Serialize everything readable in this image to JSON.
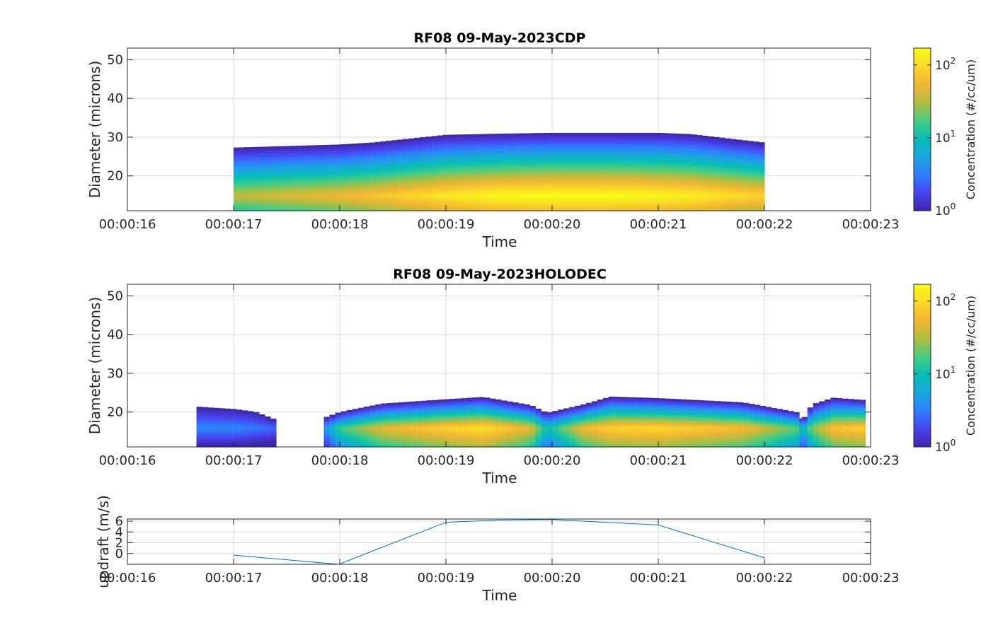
{
  "colors": {
    "line": "#0072BD",
    "colormap": [
      "#3E26A8",
      "#4743F0",
      "#2F7EFC",
      "#1AA6DD",
      "#07BFB3",
      "#4ACB81",
      "#B1BD41",
      "#F2B634",
      "#F9D929",
      "#F9FB15"
    ]
  },
  "chart_data": [
    {
      "type": "heatmap",
      "title": "RF08 09-May-2023CDP",
      "xlabel": "Time",
      "ylabel": "Diameter (microns)",
      "xticks": [
        "00:00:16",
        "00:00:17",
        "00:00:18",
        "00:00:19",
        "00:00:20",
        "00:00:21",
        "00:00:22",
        "00:00:23"
      ],
      "xlim": [
        16,
        23
      ],
      "yticks": [
        "20",
        "30",
        "40",
        "50"
      ],
      "ylim": [
        11,
        53
      ],
      "grid": true,
      "colorbar": {
        "label": "Concentration (#/cc/um)",
        "scale": "log",
        "range": [
          1,
          170
        ],
        "ticks": [
          "10",
          "10",
          "10"
        ],
        "tick_exponents": [
          "0",
          "1",
          "2"
        ]
      },
      "x": [
        17,
        17.5,
        18,
        18.3,
        19,
        19.5,
        20,
        20.5,
        21,
        21.3,
        22
      ],
      "upper_edge": [
        27.3,
        27.7,
        28.1,
        28.6,
        30.6,
        30.9,
        31.1,
        31.1,
        31.1,
        30.8,
        28.6
      ],
      "peak_log_concentration": [
        1.55,
        1.65,
        1.75,
        1.85,
        2.1,
        2.22,
        2.25,
        2.25,
        2.2,
        2.15,
        1.95
      ],
      "peak_diameter": 15
    },
    {
      "type": "heatmap",
      "title": "RF08 09-May-2023HOLODEC",
      "xlabel": "Time",
      "ylabel": "Diameter (microns)",
      "xticks": [
        "00:00:16",
        "00:00:17",
        "00:00:18",
        "00:00:19",
        "00:00:20",
        "00:00:21",
        "00:00:22",
        "00:00:23"
      ],
      "xlim": [
        16,
        23
      ],
      "yticks": [
        "20",
        "30",
        "40",
        "50"
      ],
      "ylim": [
        11,
        53
      ],
      "grid": true,
      "colorbar": {
        "label": "Concentration (#/cc/um)",
        "scale": "log",
        "range": [
          1,
          170
        ],
        "ticks": [
          "10",
          "10",
          "10"
        ],
        "tick_exponents": [
          "0",
          "1",
          "2"
        ]
      },
      "regions": [
        {
          "x": [
            16.65,
            17.0,
            17.2,
            17.4
          ],
          "upper_edge": [
            21.4,
            20.8,
            20.1,
            18.0
          ],
          "peak_log_concentration": [
            0.55,
            0.55,
            0.5,
            0.4
          ],
          "peak_diameter": 16
        },
        {
          "x": [
            17.85,
            18.0,
            18.4,
            19.0,
            19.35,
            19.8,
            19.95
          ],
          "upper_edge": [
            18.5,
            20.0,
            22.2,
            23.3,
            23.9,
            21.8,
            19.8
          ],
          "peak_log_concentration": [
            0.6,
            1.2,
            1.7,
            1.95,
            2.05,
            1.7,
            1.0
          ],
          "peak_diameter": 16
        },
        {
          "x": [
            19.95,
            20.3,
            20.55,
            21.0,
            21.8,
            22.3,
            22.38
          ],
          "upper_edge": [
            19.8,
            22.0,
            24.0,
            23.6,
            22.5,
            20.0,
            17.5
          ],
          "peak_log_concentration": [
            1.0,
            1.75,
            1.95,
            2.0,
            1.8,
            1.3,
            0.8
          ],
          "peak_diameter": 16
        },
        {
          "x": [
            22.35,
            22.45,
            22.65,
            22.95
          ],
          "upper_edge": [
            17.5,
            22.0,
            23.7,
            23.1
          ],
          "peak_log_concentration": [
            0.8,
            1.4,
            1.85,
            1.95
          ],
          "peak_diameter": 16
        }
      ]
    },
    {
      "type": "line",
      "xlabel": "Time",
      "ylabel": "updraft (m/s)",
      "xticks": [
        "00:00:16",
        "00:00:17",
        "00:00:18",
        "00:00:19",
        "00:00:20",
        "00:00:21",
        "00:00:22",
        "00:00:23"
      ],
      "xlim": [
        16,
        23
      ],
      "yticks": [
        "0",
        "2",
        "4",
        "6"
      ],
      "ylim": [
        -2,
        6.4
      ],
      "grid": true,
      "series": [
        {
          "x": [
            17,
            17.99,
            19,
            19.5,
            20,
            21,
            22
          ],
          "values": [
            -0.3,
            -2,
            5.8,
            6.2,
            6.3,
            5.3,
            -0.8
          ]
        }
      ]
    }
  ]
}
